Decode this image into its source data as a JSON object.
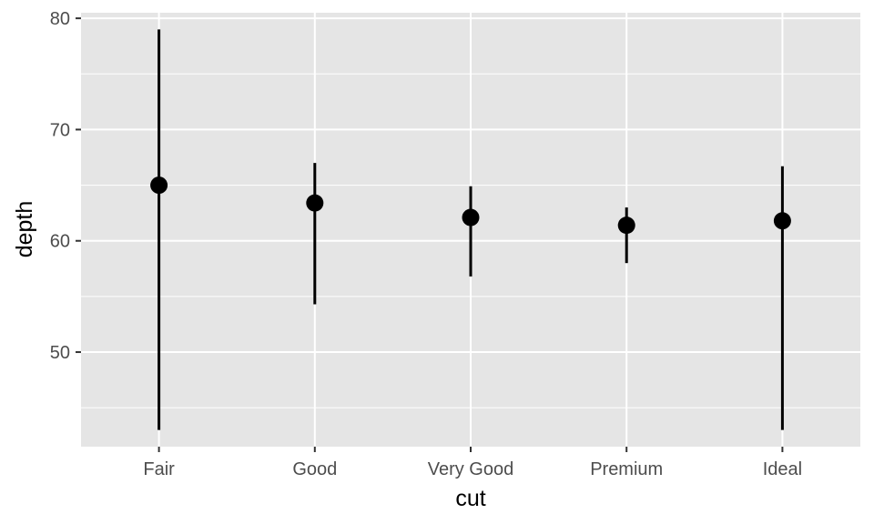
{
  "chart_data": {
    "type": "pointrange",
    "categories": [
      "Fair",
      "Good",
      "Very Good",
      "Premium",
      "Ideal"
    ],
    "values": [
      65.0,
      63.4,
      62.1,
      61.4,
      61.8
    ],
    "ymin": [
      43.0,
      54.3,
      56.8,
      58.0,
      43.0
    ],
    "ymax": [
      79.0,
      67.0,
      64.9,
      63.0,
      66.7
    ],
    "xlabel": "cut",
    "ylabel": "depth",
    "ylim": [
      41.5,
      80.5
    ],
    "yticks": [
      50,
      60,
      70,
      80
    ],
    "ytick_labels": [
      "50",
      "60",
      "70",
      "80"
    ],
    "grid": true,
    "colors": {
      "panel": "#e5e5e5",
      "grid": "#ffffff",
      "mark": "#000000",
      "axis_text": "#4d4d4d",
      "tick": "#333333"
    }
  }
}
